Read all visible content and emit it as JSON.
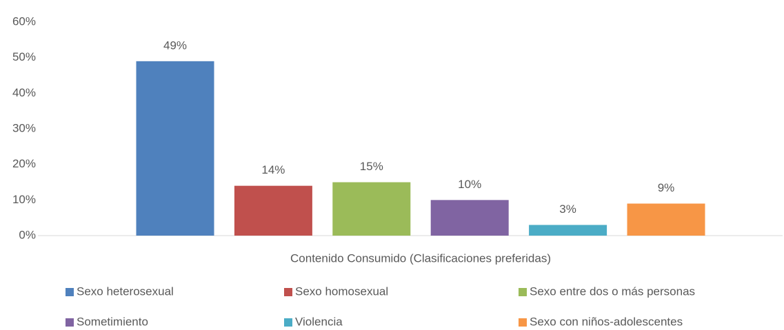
{
  "chart_data": {
    "type": "bar",
    "categories": [
      "Contenido Consumido (Clasificaciones preferidas)"
    ],
    "series": [
      {
        "name": "Sexo heterosexual",
        "color": "#4f81bd",
        "values": [
          49
        ],
        "value_labels": [
          "49%"
        ]
      },
      {
        "name": "Sexo homosexual",
        "color": "#c0504d",
        "values": [
          14
        ],
        "value_labels": [
          "14%"
        ]
      },
      {
        "name": "Sexo entre dos o más personas",
        "color": "#9bbb59",
        "values": [
          15
        ],
        "value_labels": [
          "15%"
        ]
      },
      {
        "name": "Sometimiento",
        "color": "#8064a2",
        "values": [
          10
        ],
        "value_labels": [
          "10%"
        ]
      },
      {
        "name": "Violencia",
        "color": "#4bacc6",
        "values": [
          3
        ],
        "value_labels": [
          "3%"
        ]
      },
      {
        "name": "Sexo con niños-adolescentes",
        "color": "#f79646",
        "values": [
          9
        ],
        "value_labels": [
          "9%"
        ]
      }
    ],
    "ylim": [
      0,
      60
    ],
    "yticks": [
      {
        "value": 0,
        "label": "0%"
      },
      {
        "value": 10,
        "label": "10%"
      },
      {
        "value": 20,
        "label": "20%"
      },
      {
        "value": 30,
        "label": "30%"
      },
      {
        "value": 40,
        "label": "40%"
      },
      {
        "value": 50,
        "label": "50%"
      },
      {
        "value": 60,
        "label": "60%"
      }
    ],
    "grid": false,
    "legend": "bottom"
  }
}
